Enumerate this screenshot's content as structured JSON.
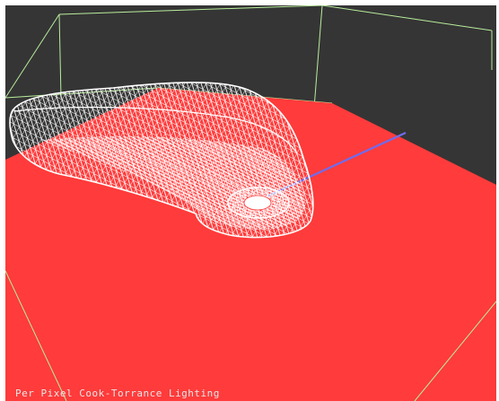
{
  "viewport": {
    "caption": "Per Pixel Cook-Torrance Lighting",
    "background_color": "#353535",
    "floor_color": "#ff3b3b",
    "bounding_box_color": "#b9ee9c",
    "mesh_color": "#ffffff",
    "light_direction_color": "#6f6cf0",
    "lighting_model": "Cook-Torrance",
    "shading": "per-pixel",
    "render_mode": "wireframe"
  }
}
